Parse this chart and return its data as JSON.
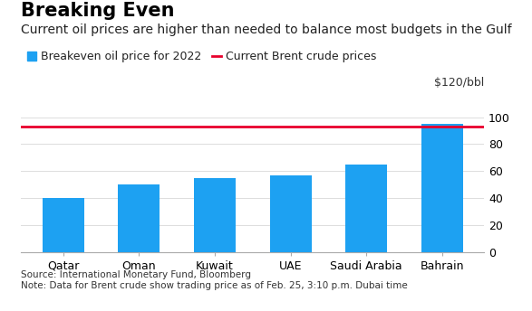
{
  "title": "Breaking Even",
  "subtitle": "Current oil prices are higher than needed to balance most budgets in the Gulf",
  "legend_bar_label": "Breakeven oil price for 2022",
  "legend_line_label": "Current Brent crude prices",
  "ylabel_top": "$120/bbl",
  "categories": [
    "Qatar",
    "Oman",
    "Kuwait",
    "UAE",
    "Saudi Arabia",
    "Bahrain"
  ],
  "values": [
    40,
    50,
    55,
    57,
    65,
    95
  ],
  "bar_color": "#1DA1F2",
  "brent_price": 93,
  "brent_color": "#E8002C",
  "ylim": [
    0,
    120
  ],
  "yticks": [
    0,
    20,
    40,
    60,
    80,
    100
  ],
  "source_text": "Source: International Monetary Fund, Bloomberg\nNote: Data for Brent crude show trading price as of Feb. 25, 3:10 p.m. Dubai time",
  "background_color": "#FFFFFF",
  "title_fontsize": 15,
  "subtitle_fontsize": 10,
  "tick_fontsize": 9,
  "legend_fontsize": 9,
  "source_fontsize": 7.5
}
